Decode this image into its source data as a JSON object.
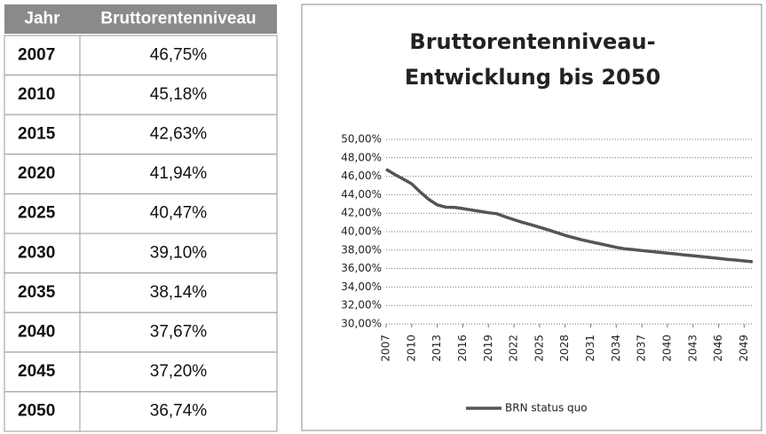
{
  "table": {
    "header": [
      "Jahr",
      "Bruttorentenniveau"
    ],
    "rows": [
      [
        "2007",
        "46,75%"
      ],
      [
        "2010",
        "45,18%"
      ],
      [
        "2015",
        "42,63%"
      ],
      [
        "2020",
        "41,94%"
      ],
      [
        "2025",
        "40,47%"
      ],
      [
        "2030",
        "39,10%"
      ],
      [
        "2035",
        "38,14%"
      ],
      [
        "2040",
        "37,67%"
      ],
      [
        "2045",
        "37,20%"
      ],
      [
        "2050",
        "36,74%"
      ]
    ]
  },
  "chart_data": {
    "type": "line",
    "title": [
      "Bruttorentenniveau-",
      "Entwicklung bis 2050"
    ],
    "x": [
      2007,
      2008,
      2009,
      2010,
      2011,
      2012,
      2013,
      2014,
      2015,
      2016,
      2017,
      2018,
      2019,
      2020,
      2021,
      2022,
      2023,
      2024,
      2025,
      2026,
      2027,
      2028,
      2029,
      2030,
      2031,
      2032,
      2033,
      2034,
      2035,
      2036,
      2037,
      2038,
      2039,
      2040,
      2041,
      2042,
      2043,
      2044,
      2045,
      2046,
      2047,
      2048,
      2049,
      2050
    ],
    "series": [
      {
        "name": "BRN status quo",
        "color": "#555555",
        "values": [
          46.75,
          46.2,
          45.7,
          45.18,
          44.3,
          43.5,
          42.9,
          42.65,
          42.63,
          42.5,
          42.35,
          42.2,
          42.05,
          41.94,
          41.6,
          41.3,
          41.0,
          40.75,
          40.47,
          40.2,
          39.9,
          39.6,
          39.35,
          39.1,
          38.9,
          38.7,
          38.5,
          38.3,
          38.14,
          38.05,
          37.95,
          37.86,
          37.76,
          37.67,
          37.58,
          37.48,
          37.39,
          37.3,
          37.2,
          37.1,
          37.0,
          36.92,
          36.83,
          36.74
        ]
      }
    ],
    "xlim": [
      2007,
      2050
    ],
    "xticks": [
      2007,
      2010,
      2013,
      2016,
      2019,
      2022,
      2025,
      2028,
      2031,
      2034,
      2037,
      2040,
      2043,
      2046,
      2049
    ],
    "ylim": [
      30,
      50
    ],
    "yticks": [
      {
        "value": 30,
        "label": "30,00%"
      },
      {
        "value": 32,
        "label": "32,00%"
      },
      {
        "value": 34,
        "label": "34,00%"
      },
      {
        "value": 36,
        "label": "36,00%"
      },
      {
        "value": 38,
        "label": "38,00%"
      },
      {
        "value": 40,
        "label": "40,00%"
      },
      {
        "value": 42,
        "label": "42,00%"
      },
      {
        "value": 44,
        "label": "44,00%"
      },
      {
        "value": 46,
        "label": "46,00%"
      },
      {
        "value": 48,
        "label": "48,00%"
      },
      {
        "value": 50,
        "label": "50,00%"
      }
    ],
    "grid": true,
    "legend": "bottom"
  }
}
